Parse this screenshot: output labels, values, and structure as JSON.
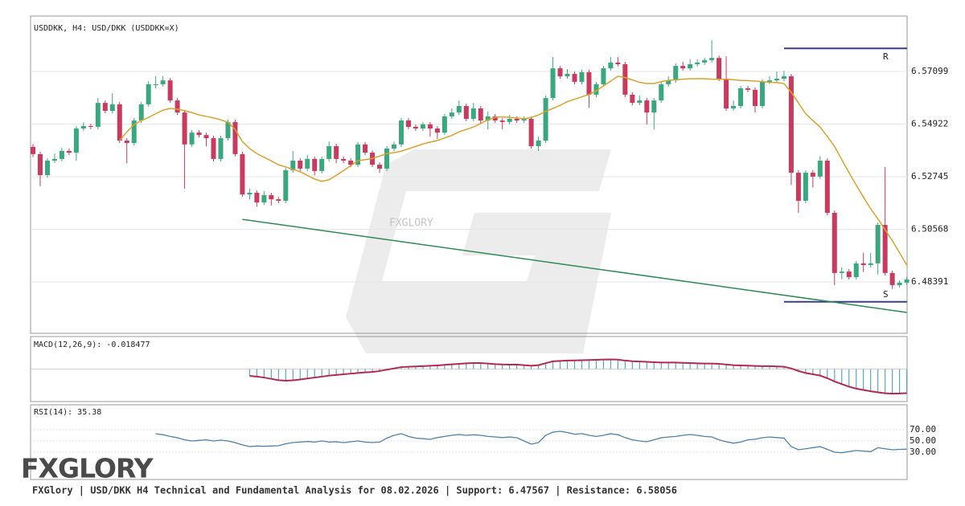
{
  "chart_data": [
    {
      "type": "candlestick",
      "title": "USDDKK, H4: USD/DKK (USDDKK=X)",
      "watermark": "FXGLORY",
      "ylim": [
        6.46264,
        6.59393
      ],
      "yticks": [
        6.48391,
        6.50568,
        6.52745,
        6.54922,
        6.57099
      ],
      "grid": true,
      "up_color": "#3aa87e",
      "down_color": "#c93a5e",
      "candles": {
        "open": [
          6.5398,
          6.5368,
          6.5281,
          6.5341,
          6.5348,
          6.5381,
          6.5374,
          6.5474,
          6.5484,
          6.5481,
          6.558,
          6.5547,
          6.5574,
          6.5424,
          6.5414,
          6.5507,
          6.5574,
          6.5657,
          6.5657,
          6.5673,
          6.559,
          6.554,
          6.5408,
          6.5457,
          6.5447,
          6.5434,
          6.5348,
          6.5434,
          6.5501,
          6.5368,
          6.5201,
          6.5208,
          6.5168,
          6.5198,
          6.5181,
          6.5175,
          6.5301,
          6.5341,
          6.5308,
          6.5348,
          6.5298,
          6.5348,
          6.5401,
          6.5348,
          6.5341,
          6.5324,
          6.5408,
          6.5374,
          6.5324,
          6.5308,
          6.5391,
          6.5408,
          6.5507,
          6.5481,
          6.5474,
          6.5491,
          6.5474,
          6.5457,
          6.5524,
          6.554,
          6.5567,
          6.5514,
          6.5557,
          6.5507,
          6.5524,
          6.5507,
          6.5501,
          6.5514,
          6.5507,
          6.5514,
          6.5401,
          6.5424,
          6.56,
          6.5723,
          6.569,
          6.57,
          6.5667,
          6.5707,
          6.5614,
          6.5657,
          6.5723,
          6.5747,
          6.574,
          6.5614,
          6.558,
          6.559,
          6.554,
          6.559,
          6.5657,
          6.5673,
          6.5733,
          6.5723,
          6.574,
          6.5747,
          6.5757,
          6.5766,
          6.568,
          6.5557,
          6.5567,
          6.564,
          6.5634,
          6.5567,
          6.5667,
          6.5673,
          6.568,
          6.569,
          6.5291,
          6.5175,
          6.5291,
          6.5275,
          6.5341,
          6.5125,
          6.4876,
          6.4882,
          6.4859,
          6.4916,
          6.4909,
          6.4916,
          6.5075,
          6.4876,
          6.4826,
          6.4836
        ],
        "high": [
          6.541,
          6.5378,
          6.5351,
          6.537,
          6.5395,
          6.5391,
          6.5484,
          6.55,
          6.5494,
          6.56,
          6.559,
          6.562,
          6.5584,
          6.5434,
          6.5517,
          6.5584,
          6.567,
          6.569,
          6.569,
          6.5683,
          6.56,
          6.555,
          6.5467,
          6.5467,
          6.5457,
          6.5444,
          6.5444,
          6.5511,
          6.5511,
          6.5378,
          6.5225,
          6.5218,
          6.5215,
          6.5208,
          6.5191,
          6.5311,
          6.5381,
          6.5351,
          6.5365,
          6.5358,
          6.5358,
          6.542,
          6.5411,
          6.5358,
          6.5351,
          6.5418,
          6.5418,
          6.5384,
          6.5334,
          6.5401,
          6.542,
          6.5517,
          6.5517,
          6.5491,
          6.5501,
          6.5501,
          6.5484,
          6.5534,
          6.5557,
          6.559,
          6.5577,
          6.558,
          6.5567,
          6.5545,
          6.5534,
          6.5517,
          6.553,
          6.5524,
          6.5524,
          6.5524,
          6.544,
          6.561,
          6.577,
          6.5733,
          6.572,
          6.571,
          6.5717,
          6.5717,
          6.5667,
          6.5733,
          6.577,
          6.577,
          6.575,
          6.5624,
          6.561,
          6.56,
          6.56,
          6.5667,
          6.569,
          6.5743,
          6.575,
          6.576,
          6.576,
          6.5767,
          6.5839,
          6.5776,
          6.5773,
          6.559,
          6.565,
          6.565,
          6.5644,
          6.5677,
          6.569,
          6.571,
          6.5713,
          6.57,
          6.5301,
          6.5301,
          6.5301,
          6.536,
          6.5351,
          6.5135,
          6.49,
          6.4892,
          6.4926,
          6.496,
          6.496,
          6.5085,
          6.5315,
          6.4886,
          6.4846,
          6.4859
        ],
        "low": [
          6.5356,
          6.5235,
          6.5271,
          6.5331,
          6.5338,
          6.5364,
          6.534,
          6.5464,
          6.5471,
          6.5471,
          6.5537,
          6.5537,
          6.5414,
          6.533,
          6.5404,
          6.5497,
          6.5564,
          6.564,
          6.5647,
          6.558,
          6.553,
          6.5225,
          6.5398,
          6.5437,
          6.54,
          6.5338,
          6.5338,
          6.5424,
          6.5358,
          6.5191,
          6.518,
          6.515,
          6.5158,
          6.5155,
          6.5165,
          6.5165,
          6.5291,
          6.5298,
          6.5298,
          6.528,
          6.5288,
          6.5338,
          6.533,
          6.5331,
          6.5314,
          6.5314,
          6.5364,
          6.5314,
          6.529,
          6.5298,
          6.5381,
          6.5398,
          6.5471,
          6.5464,
          6.5464,
          6.544,
          6.543,
          6.5447,
          6.5514,
          6.553,
          6.5504,
          6.5504,
          6.5497,
          6.547,
          6.5497,
          6.547,
          6.5491,
          6.5497,
          6.5497,
          6.5391,
          6.5381,
          6.5414,
          6.559,
          6.568,
          6.568,
          6.5657,
          6.5657,
          6.556,
          6.5604,
          6.5647,
          6.5713,
          6.573,
          6.5604,
          6.557,
          6.557,
          6.549,
          6.547,
          6.558,
          6.5647,
          6.5663,
          6.5713,
          6.5713,
          6.573,
          6.5737,
          6.5747,
          6.567,
          6.5547,
          6.5547,
          6.5557,
          6.5624,
          6.554,
          6.5557,
          6.5657,
          6.5663,
          6.567,
          6.524,
          6.5125,
          6.5165,
          6.523,
          6.5265,
          6.5115,
          6.4826,
          6.485,
          6.4849,
          6.4849,
          6.488,
          6.4899,
          6.487,
          6.4866,
          6.481,
          6.4816,
          6.4826
        ],
        "close": [
          6.5368,
          6.5281,
          6.5341,
          6.5348,
          6.5381,
          6.5374,
          6.5474,
          6.5484,
          6.5481,
          6.558,
          6.5547,
          6.5574,
          6.5424,
          6.5414,
          6.5507,
          6.5574,
          6.5657,
          6.5657,
          6.5673,
          6.559,
          6.554,
          6.5408,
          6.5457,
          6.5447,
          6.5434,
          6.5348,
          6.5434,
          6.5501,
          6.5368,
          6.5201,
          6.5208,
          6.5168,
          6.5198,
          6.5181,
          6.5175,
          6.5301,
          6.5341,
          6.5308,
          6.5348,
          6.5298,
          6.5348,
          6.5401,
          6.5348,
          6.5341,
          6.5324,
          6.5408,
          6.5374,
          6.5324,
          6.5308,
          6.5391,
          6.5408,
          6.5507,
          6.5481,
          6.5474,
          6.5491,
          6.5474,
          6.5457,
          6.5524,
          6.554,
          6.5567,
          6.5514,
          6.5557,
          6.5507,
          6.5524,
          6.5507,
          6.5501,
          6.5514,
          6.5507,
          6.5514,
          6.5401,
          6.5424,
          6.56,
          6.5723,
          6.569,
          6.57,
          6.5667,
          6.5707,
          6.5614,
          6.5657,
          6.5723,
          6.5747,
          6.574,
          6.5614,
          6.558,
          6.559,
          6.554,
          6.559,
          6.5657,
          6.5673,
          6.5733,
          6.5723,
          6.574,
          6.5747,
          6.5757,
          6.5766,
          6.568,
          6.5557,
          6.5567,
          6.564,
          6.5634,
          6.5567,
          6.5667,
          6.5673,
          6.568,
          6.569,
          6.5291,
          6.5175,
          6.5291,
          6.5275,
          6.5341,
          6.5125,
          6.4876,
          6.4882,
          6.4859,
          6.4916,
          6.4909,
          6.4916,
          6.5075,
          6.4876,
          6.4826,
          6.4836,
          6.4849
        ]
      },
      "ma": {
        "color": "#d9a22b",
        "values": [
          null,
          null,
          null,
          null,
          null,
          null,
          null,
          null,
          null,
          null,
          null,
          null,
          6.5424,
          6.546,
          6.549,
          6.5507,
          6.552,
          6.5535,
          6.555,
          6.5557,
          6.5554,
          6.5548,
          6.554,
          6.553,
          6.5524,
          6.5518,
          6.551,
          6.55,
          6.547,
          6.542,
          6.5391,
          6.537,
          6.5355,
          6.534,
          6.5324,
          6.5315,
          6.5305,
          6.5295,
          6.528,
          6.5265,
          6.5255,
          6.5262,
          6.528,
          6.53,
          6.532,
          6.5341,
          6.5345,
          6.535,
          6.536,
          6.537,
          6.5374,
          6.538,
          6.539,
          6.54,
          6.541,
          6.5418,
          6.5424,
          6.5435,
          6.5445,
          6.546,
          6.547,
          6.548,
          6.5495,
          6.551,
          6.552,
          6.5522,
          6.552,
          6.5518,
          6.5514,
          6.552,
          6.553,
          6.5545,
          6.5557,
          6.557,
          6.5585,
          6.5595,
          6.5605,
          6.5615,
          6.563,
          6.565,
          6.567,
          6.569,
          6.5685,
          6.5675,
          6.5665,
          6.566,
          6.566,
          6.5668,
          6.5673,
          6.5676,
          6.5678,
          6.568,
          6.568,
          6.568,
          6.5678,
          6.5678,
          6.5678,
          6.5676,
          6.5673,
          6.5672,
          6.567,
          6.5668,
          6.5665,
          6.5664,
          6.566,
          6.5624,
          6.558,
          6.5535,
          6.5507,
          6.548,
          6.5441,
          6.54,
          6.5345,
          6.5291,
          6.524,
          6.519,
          6.5142,
          6.51,
          6.5055,
          6.501,
          6.496,
          6.4909
        ]
      },
      "levels": [
        {
          "label": "R",
          "value": 6.58056,
          "from": 104,
          "color": "#3a3f8c"
        },
        {
          "label": "S",
          "value": 6.47567,
          "from": 104,
          "color": "#3a3f8c"
        }
      ],
      "trendline": {
        "color": "#2e8a57",
        "x": [
          29,
          121
        ],
        "values": [
          6.5098,
          6.4713
        ]
      }
    },
    {
      "type": "macd",
      "title": "MACD(12,26,9): -0.018477",
      "ylim": [
        -0.0249,
        0.0249
      ],
      "color": "#5aa8c0",
      "line_color": "#b5284f",
      "values": [
        null,
        null,
        null,
        null,
        null,
        null,
        null,
        null,
        null,
        null,
        null,
        null,
        null,
        null,
        null,
        null,
        null,
        null,
        null,
        null,
        null,
        null,
        null,
        null,
        null,
        null,
        null,
        null,
        null,
        null,
        -0.0052,
        -0.0058,
        -0.0065,
        -0.0075,
        -0.0085,
        -0.0089,
        -0.0086,
        -0.008,
        -0.0072,
        -0.0065,
        -0.0058,
        -0.005,
        -0.0045,
        -0.004,
        -0.0035,
        -0.003,
        -0.0025,
        -0.0022,
        -0.0015,
        -0.0005,
        0.0005,
        0.0015,
        0.0018,
        0.002,
        0.0022,
        0.0025,
        0.0028,
        0.0032,
        0.0036,
        0.004,
        0.0044,
        0.0046,
        0.0046,
        0.0042,
        0.0038,
        0.0035,
        0.0034,
        0.0034,
        0.003,
        0.0025,
        0.003,
        0.0045,
        0.0059,
        0.0062,
        0.0065,
        0.0066,
        0.0068,
        0.0069,
        0.0071,
        0.0073,
        0.0074,
        0.0072,
        0.0065,
        0.006,
        0.0058,
        0.0055,
        0.0052,
        0.005,
        0.005,
        0.005,
        0.0048,
        0.0046,
        0.0044,
        0.0042,
        0.0042,
        0.004,
        0.0035,
        0.003,
        0.0028,
        0.0026,
        0.0024,
        0.0022,
        0.0022,
        0.002,
        0.0018,
        0.0005,
        -0.0015,
        -0.003,
        -0.004,
        -0.005,
        -0.007,
        -0.0095,
        -0.0115,
        -0.0135,
        -0.015,
        -0.016,
        -0.017,
        -0.0178,
        -0.0185,
        -0.0188,
        -0.0187,
        -0.018477
      ]
    },
    {
      "type": "line",
      "title": "RSI(14): 35.38",
      "ylim": [
        -18.6,
        114.3
      ],
      "color": "#4a80aa",
      "yticks": [
        {
          "value": 30,
          "label": "30.00"
        },
        {
          "value": 50,
          "label": "50.00"
        },
        {
          "value": 70,
          "label": "70.00"
        }
      ],
      "values": [
        null,
        null,
        null,
        null,
        null,
        null,
        null,
        null,
        null,
        null,
        null,
        null,
        null,
        null,
        null,
        null,
        null,
        62.9,
        61,
        58,
        55.7,
        52,
        50,
        51,
        52,
        50,
        51.4,
        50,
        47,
        43,
        40,
        41,
        40.5,
        41,
        41.4,
        45,
        47.1,
        48,
        49,
        48,
        50,
        48,
        48.6,
        47,
        48.6,
        50,
        48,
        47.1,
        48,
        55,
        60,
        63,
        58,
        55,
        54,
        52.9,
        56,
        58,
        60,
        61.4,
        60,
        61,
        60,
        58,
        57.1,
        56,
        57,
        55.7,
        50,
        44.3,
        47,
        60,
        65.7,
        67.1,
        65,
        62,
        63,
        60,
        58,
        60,
        62.9,
        61,
        56,
        52,
        50,
        48.6,
        52,
        55.7,
        57,
        58,
        60,
        61.4,
        60,
        58,
        57.1,
        52,
        48.6,
        46,
        48,
        52,
        53,
        55.7,
        57,
        56,
        55,
        40,
        34.3,
        36,
        38,
        40,
        35,
        30,
        29,
        31,
        33,
        32,
        31,
        38,
        36,
        34.3,
        35,
        35.38
      ]
    }
  ],
  "logo": "FXGLORY",
  "footer": "FXGlory | USD/DKK H4 Technical and Fundamental Analysis for 08.02.2026 | Support: 6.47567 | Resistance: 6.58056"
}
